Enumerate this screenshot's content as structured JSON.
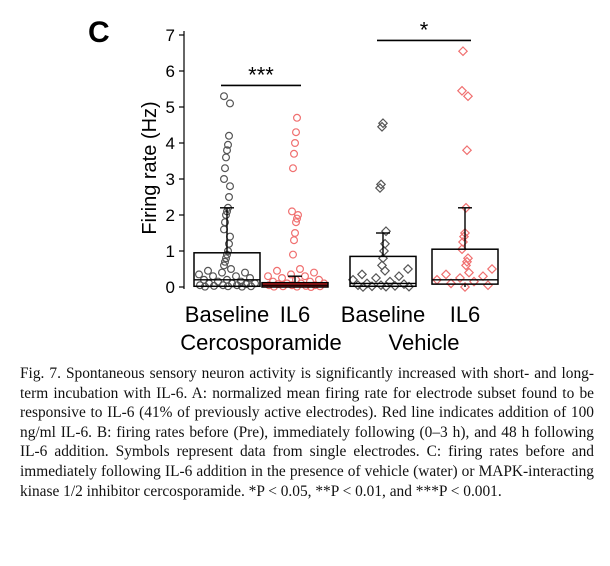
{
  "chart_data": {
    "type": "box",
    "panel_label": "C",
    "ylabel": "Firing rate (Hz)",
    "ylim": [
      0,
      7
    ],
    "y_ticks": [
      "0",
      "1",
      "2",
      "3",
      "4",
      "5",
      "6",
      "7"
    ],
    "categories": [
      "Baseline",
      "IL6",
      "Baseline",
      "IL6"
    ],
    "groups": [
      "Cercosporamide",
      "Vehicle"
    ],
    "series": [
      {
        "category": "Baseline",
        "group": "Cercosporamide",
        "marker": "circle",
        "color": "#555555",
        "box_fill": "none",
        "box": {
          "q1": 0.02,
          "median": 0.2,
          "q3": 0.95,
          "whisker_low": 0.0,
          "whisker_high": 2.2
        },
        "points": [
          5.3,
          5.1,
          4.2,
          3.95,
          3.8,
          3.6,
          3.3,
          3.0,
          2.8,
          2.5,
          2.2,
          2.1,
          2.0,
          1.8,
          1.6,
          1.4,
          1.2,
          1.0,
          0.9,
          0.8,
          0.7,
          0.6,
          0.5,
          0.45,
          0.4,
          0.4,
          0.35,
          0.3,
          0.3,
          0.25,
          0.2,
          0.2,
          0.15,
          0.15,
          0.1,
          0.1,
          0.1,
          0.08,
          0.05,
          0.05,
          0.05,
          0.03,
          0.02,
          0.02,
          0.01,
          0.01
        ]
      },
      {
        "category": "IL6",
        "group": "Cercosporamide",
        "marker": "circle",
        "color": "#f07070",
        "box_fill": "#ee2222",
        "box": {
          "q1": 0.0,
          "median": 0.05,
          "q3": 0.12,
          "whisker_low": 0.0,
          "whisker_high": 0.3
        },
        "points": [
          4.7,
          4.3,
          4.0,
          3.7,
          3.3,
          2.1,
          2.0,
          1.9,
          1.8,
          1.5,
          1.3,
          0.9,
          0.5,
          0.45,
          0.4,
          0.35,
          0.3,
          0.3,
          0.25,
          0.2,
          0.2,
          0.15,
          0.15,
          0.1,
          0.1,
          0.1,
          0.08,
          0.05,
          0.05,
          0.05,
          0.03,
          0.02,
          0.02,
          0.01,
          0.01,
          0.0
        ]
      },
      {
        "category": "Baseline",
        "group": "Vehicle",
        "marker": "diamond",
        "color": "#555555",
        "box_fill": "none",
        "box": {
          "q1": 0.02,
          "median": 0.1,
          "q3": 0.85,
          "whisker_low": 0.0,
          "whisker_high": 1.5
        },
        "points": [
          4.55,
          4.45,
          2.85,
          2.75,
          1.55,
          1.2,
          1.0,
          0.8,
          0.6,
          0.5,
          0.45,
          0.35,
          0.3,
          0.25,
          0.2,
          0.15,
          0.1,
          0.08,
          0.05,
          0.05,
          0.03,
          0.02,
          0.01,
          0.01,
          0.0
        ]
      },
      {
        "category": "IL6",
        "group": "Vehicle",
        "marker": "diamond",
        "color": "#f07070",
        "box_fill": "none",
        "box": {
          "q1": 0.08,
          "median": 0.2,
          "q3": 1.05,
          "whisker_low": 0.0,
          "whisker_high": 2.2
        },
        "points": [
          6.55,
          5.45,
          5.3,
          3.8,
          2.2,
          1.5,
          1.4,
          1.25,
          1.05,
          0.8,
          0.7,
          0.6,
          0.5,
          0.4,
          0.35,
          0.3,
          0.25,
          0.2,
          0.15,
          0.1,
          0.05,
          0.0
        ]
      }
    ],
    "annotations": [
      {
        "text": "***",
        "between": [
          0,
          1
        ],
        "y": 5.6
      },
      {
        "text": "*",
        "between": [
          2,
          3
        ],
        "y": 6.85
      }
    ]
  },
  "caption": {
    "text": "Fig. 7. Spontaneous sensory neuron activity is significantly increased with short- and long-term incubation with IL-6. A: normalized mean firing rate for electrode subset found to be responsive to IL-6 (41% of previously active electrodes). Red line indicates addition of 100 ng/ml IL-6. B: firing rates before (Pre), immediately following (0–3 h), and 48 h following IL-6 addition. Symbols represent data from single electrodes. C: firing rates before and immediately following IL-6 addition in the presence of vehicle (water) or MAPK-interacting kinase 1/2 inhibitor cercosporamide. *P < 0.05, **P < 0.01, and ***P < 0.001."
  }
}
